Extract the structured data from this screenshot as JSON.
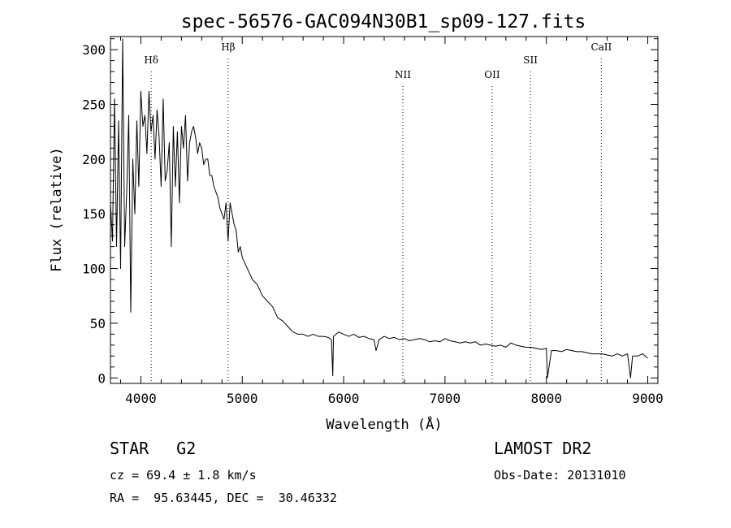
{
  "chart_data": {
    "type": "line",
    "title": "spec-56576-GAC094N30B1_sp09-127.fits",
    "xlabel": "Wavelength (Å)",
    "ylabel": "Flux (relative)",
    "xlim": [
      3700,
      9100
    ],
    "ylim": [
      -5,
      312
    ],
    "xticks": [
      4000,
      5000,
      6000,
      7000,
      8000,
      9000
    ],
    "yticks": [
      0,
      50,
      100,
      150,
      200,
      250,
      300
    ],
    "grid": false,
    "line_color": "#000000",
    "lines": [
      {
        "label": "Hδ",
        "wavelength": 4102
      },
      {
        "label": "Hβ",
        "wavelength": 4861
      },
      {
        "label": "NII",
        "wavelength": 6584
      },
      {
        "label": "OII",
        "wavelength": 7465
      },
      {
        "label": "SII",
        "wavelength": 7843
      },
      {
        "label": "CaII",
        "wavelength": 8542
      }
    ],
    "series": [
      {
        "x": [
          3700,
          3720,
          3740,
          3760,
          3780,
          3800,
          3820,
          3840,
          3860,
          3880,
          3900,
          3920,
          3940,
          3960,
          3980,
          4000,
          4020,
          4040,
          4060,
          4080,
          4100,
          4120,
          4140,
          4160,
          4180,
          4200,
          4220,
          4240,
          4260,
          4280,
          4300,
          4320,
          4340,
          4360,
          4380,
          4400,
          4420,
          4440,
          4460,
          4480,
          4500,
          4520,
          4540,
          4560,
          4580,
          4600,
          4620,
          4640,
          4660,
          4680,
          4700,
          4720,
          4740,
          4760,
          4780,
          4800,
          4820,
          4840,
          4860,
          4880,
          4900,
          4920,
          4940,
          4960,
          4980,
          5000,
          5050,
          5100,
          5150,
          5200,
          5250,
          5300,
          5350,
          5400,
          5450,
          5500,
          5550,
          5600,
          5650,
          5700,
          5750,
          5800,
          5850,
          5880,
          5893,
          5900,
          5950,
          6000,
          6050,
          6100,
          6150,
          6200,
          6250,
          6300,
          6320,
          6350,
          6400,
          6450,
          6500,
          6550,
          6600,
          6650,
          6700,
          6750,
          6800,
          6850,
          6900,
          6950,
          7000,
          7050,
          7100,
          7150,
          7200,
          7250,
          7300,
          7350,
          7400,
          7450,
          7500,
          7550,
          7600,
          7650,
          7700,
          7750,
          7800,
          7850,
          7900,
          7950,
          8000,
          8010,
          8050,
          8100,
          8150,
          8200,
          8250,
          8300,
          8350,
          8400,
          8450,
          8500,
          8550,
          8600,
          8650,
          8700,
          8750,
          8800,
          8830,
          8850,
          8900,
          8950,
          9000
        ],
        "y": [
          160,
          125,
          255,
          120,
          235,
          100,
          310,
          120,
          170,
          240,
          60,
          200,
          150,
          235,
          175,
          262,
          230,
          240,
          205,
          262,
          225,
          240,
          200,
          245,
          220,
          175,
          255,
          180,
          190,
          215,
          120,
          230,
          175,
          225,
          160,
          230,
          210,
          240,
          180,
          215,
          225,
          230,
          220,
          205,
          215,
          210,
          195,
          200,
          200,
          185,
          185,
          175,
          170,
          165,
          155,
          150,
          145,
          160,
          125,
          160,
          150,
          140,
          135,
          115,
          120,
          110,
          100,
          90,
          85,
          75,
          70,
          65,
          55,
          52,
          47,
          42,
          40,
          40,
          38,
          40,
          38,
          38,
          37,
          35,
          2,
          38,
          42,
          40,
          38,
          40,
          37,
          38,
          36,
          35,
          25,
          35,
          38,
          36,
          37,
          35,
          36,
          34,
          35,
          36,
          35,
          33,
          34,
          33,
          36,
          34,
          33,
          32,
          33,
          32,
          33,
          30,
          31,
          30,
          29,
          30,
          28,
          32,
          30,
          29,
          28,
          28,
          27,
          26,
          27,
          0,
          25,
          25,
          24,
          26,
          25,
          24,
          24,
          23,
          22,
          22,
          22,
          21,
          20,
          22,
          20,
          22,
          0,
          20,
          20,
          22,
          18
        ]
      }
    ]
  },
  "footer": {
    "class_label": "STAR",
    "subclass": "G2",
    "survey": "LAMOST DR2",
    "cz": "cz = 69.4 ± 1.8 km/s",
    "obs_date": "Obs-Date: 20131010",
    "radec": "RA =  95.63445, DEC =  30.46332"
  }
}
